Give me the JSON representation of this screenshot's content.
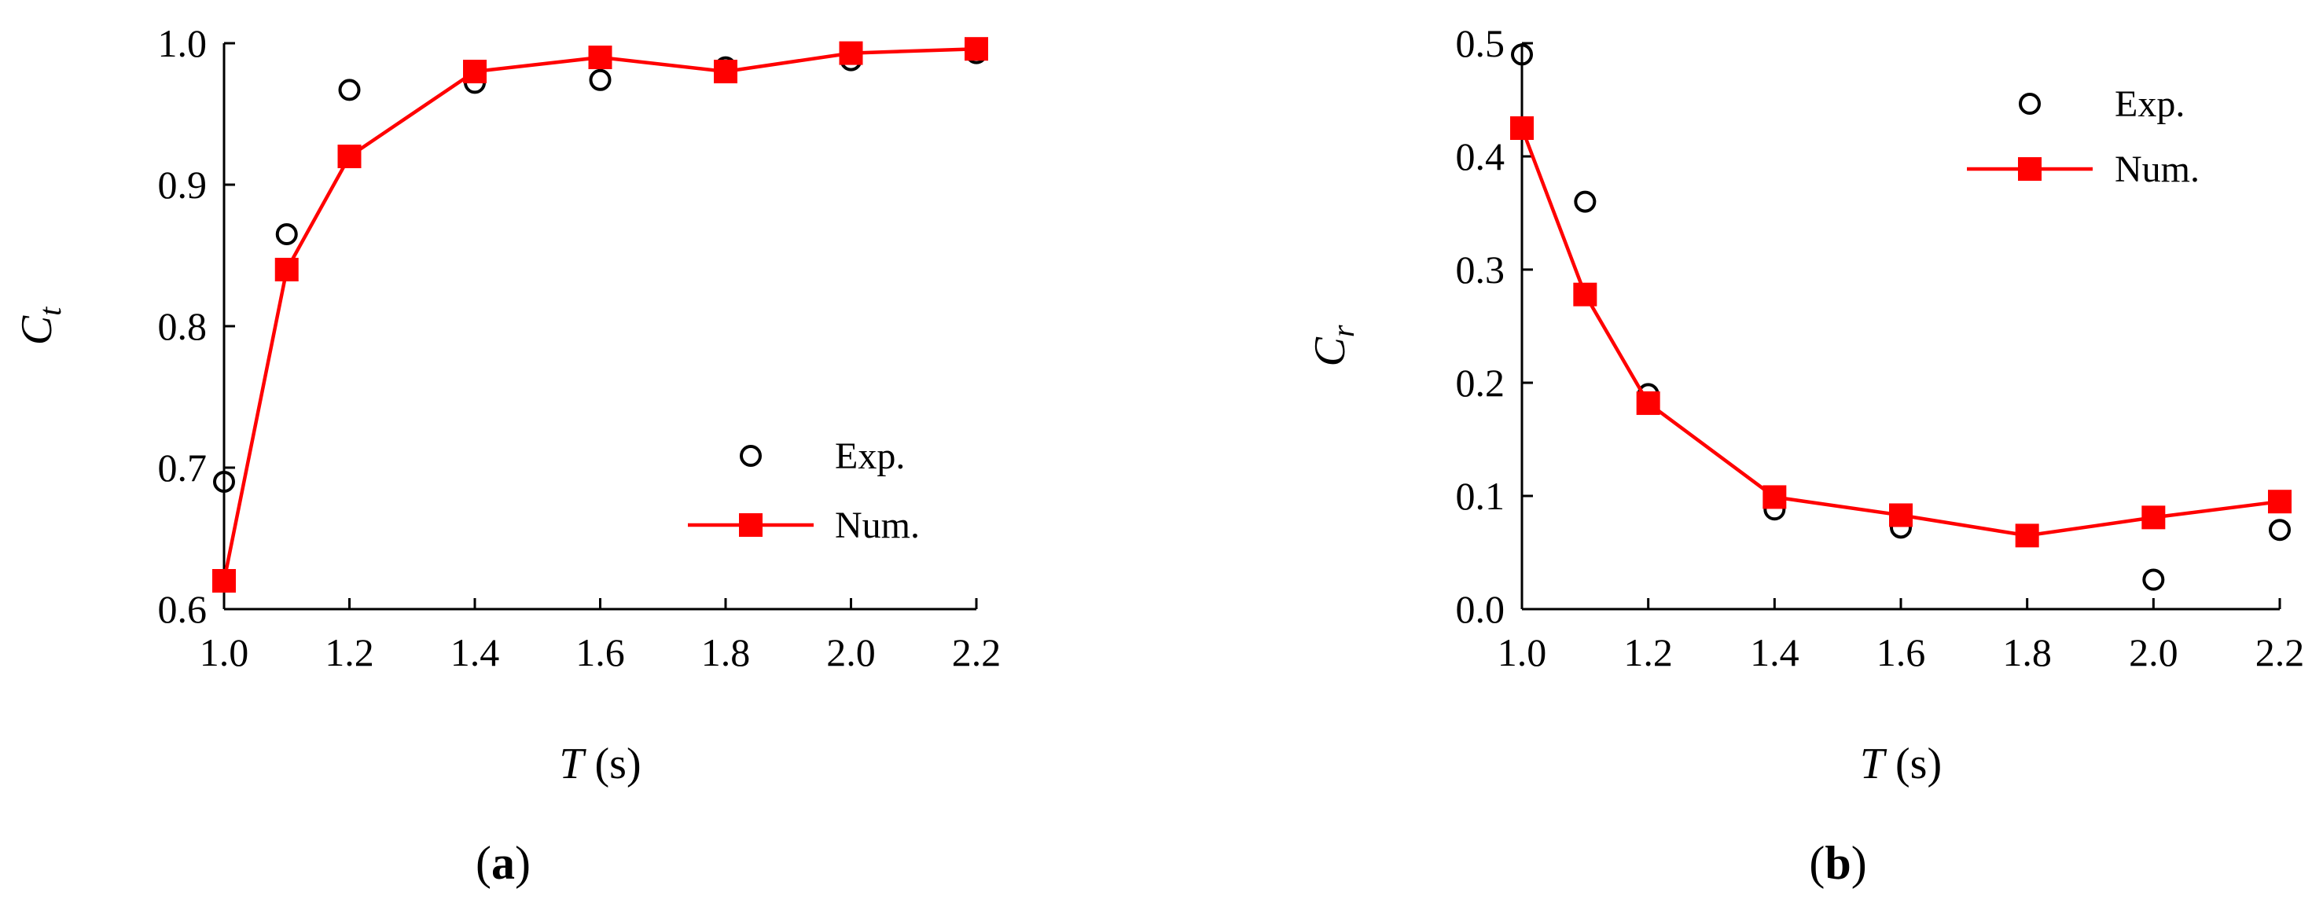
{
  "chart_data": [
    {
      "type": "line",
      "panel_label": "a",
      "xlabel": {
        "var": "T",
        "unit": " (s)"
      },
      "ylabel": {
        "main": "C",
        "sub": "t"
      },
      "xlim": [
        1.0,
        2.2
      ],
      "ylim": [
        0.6,
        1.0
      ],
      "xticks": [
        "1.0",
        "1.2",
        "1.4",
        "1.6",
        "1.8",
        "2.0",
        "2.2"
      ],
      "yticks": [
        "0.6",
        "0.7",
        "0.8",
        "0.9",
        "1.0"
      ],
      "grid": false,
      "legend_position": "bottom-right",
      "series": [
        {
          "name": "Exp.",
          "marker": "open-circle",
          "color": "#000000",
          "x": [
            1.0,
            1.1,
            1.2,
            1.4,
            1.6,
            1.8,
            2.0,
            2.2
          ],
          "y": [
            0.69,
            0.865,
            0.967,
            0.972,
            0.974,
            0.983,
            0.988,
            0.993
          ]
        },
        {
          "name": "Num.",
          "marker": "filled-square",
          "color": "#ff0000",
          "x": [
            1.0,
            1.1,
            1.2,
            1.4,
            1.6,
            1.8,
            2.0,
            2.2
          ],
          "y": [
            0.62,
            0.84,
            0.92,
            0.98,
            0.99,
            0.98,
            0.993,
            0.996
          ]
        }
      ]
    },
    {
      "type": "line",
      "panel_label": "b",
      "xlabel": {
        "var": "T",
        "unit": " (s)"
      },
      "ylabel": {
        "main": "C",
        "sub": "r"
      },
      "xlim": [
        1.0,
        2.2
      ],
      "ylim": [
        0.0,
        0.5
      ],
      "xticks": [
        "1.0",
        "1.2",
        "1.4",
        "1.6",
        "1.8",
        "2.0",
        "2.2"
      ],
      "yticks": [
        "0.0",
        "0.1",
        "0.2",
        "0.3",
        "0.4",
        "0.5"
      ],
      "grid": false,
      "legend_position": "top-right",
      "series": [
        {
          "name": "Exp.",
          "marker": "open-circle",
          "color": "#000000",
          "x": [
            1.0,
            1.1,
            1.2,
            1.4,
            1.6,
            1.8,
            2.0,
            2.2
          ],
          "y": [
            0.49,
            0.36,
            0.19,
            0.088,
            0.072,
            0.065,
            0.026,
            0.07
          ]
        },
        {
          "name": "Num.",
          "marker": "filled-square",
          "color": "#ff0000",
          "x": [
            1.0,
            1.1,
            1.2,
            1.4,
            1.6,
            1.8,
            2.0,
            2.2
          ],
          "y": [
            0.425,
            0.278,
            0.182,
            0.099,
            0.083,
            0.065,
            0.081,
            0.095
          ]
        }
      ]
    }
  ]
}
